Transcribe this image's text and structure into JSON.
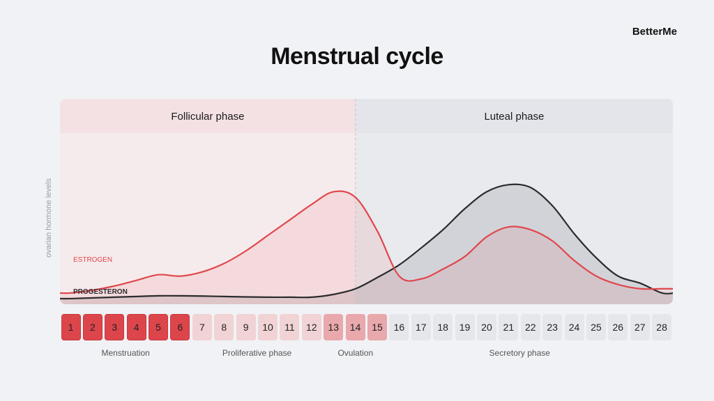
{
  "brand": "BetterMe",
  "title": "Menstrual cycle",
  "colors": {
    "estrogen": "#e0474c",
    "progesterone": "#2b2b2e",
    "follicular_bg": "#f3e1e3",
    "luteal_bg": "#e3e5ea",
    "menstruation_day": "#e0474c",
    "ovulation_day": "#e8a8ac",
    "proliferative_day": "#f1d3d5",
    "secretory_day": "#e6e7eb"
  },
  "chart_data": {
    "type": "line",
    "ylabel": "ovarian hormone levels",
    "phases": [
      {
        "label": "Follicular phase",
        "start_day": 1,
        "end_day": 14
      },
      {
        "label": "Luteal phase",
        "start_day": 14,
        "end_day": 28
      }
    ],
    "x": [
      1,
      2,
      3,
      4,
      5,
      6,
      7,
      8,
      9,
      10,
      11,
      12,
      13,
      14,
      15,
      16,
      17,
      18,
      19,
      20,
      21,
      22,
      23,
      24,
      25,
      26,
      27,
      28
    ],
    "series": [
      {
        "name": "ESTROGEN",
        "values": [
          8,
          10,
          13,
          17,
          21,
          20,
          23,
          29,
          38,
          49,
          60,
          71,
          80,
          76,
          52,
          20,
          18,
          25,
          34,
          48,
          55,
          53,
          45,
          31,
          20,
          14,
          11,
          11
        ]
      },
      {
        "name": "PROGESTERON",
        "values": [
          4,
          4.5,
          5,
          5.5,
          6,
          6,
          5.8,
          5.5,
          5.2,
          5,
          5,
          5,
          7,
          11,
          19,
          28,
          40,
          53,
          68,
          80,
          85,
          83,
          70,
          50,
          33,
          20,
          15,
          8
        ]
      }
    ],
    "ylim": [
      0,
      100
    ]
  },
  "days": [
    {
      "label": "1",
      "type": "menstruation"
    },
    {
      "label": "2",
      "type": "menstruation"
    },
    {
      "label": "3",
      "type": "menstruation"
    },
    {
      "label": "4",
      "type": "menstruation"
    },
    {
      "label": "5",
      "type": "menstruation"
    },
    {
      "label": "6",
      "type": "menstruation"
    },
    {
      "label": "7",
      "type": "proliferative"
    },
    {
      "label": "8",
      "type": "proliferative"
    },
    {
      "label": "9",
      "type": "proliferative"
    },
    {
      "label": "10",
      "type": "proliferative"
    },
    {
      "label": "11",
      "type": "proliferative"
    },
    {
      "label": "12",
      "type": "proliferative"
    },
    {
      "label": "13",
      "type": "ovulation"
    },
    {
      "label": "14",
      "type": "ovulation"
    },
    {
      "label": "15",
      "type": "ovulation"
    },
    {
      "label": "16",
      "type": "secretory"
    },
    {
      "label": "17",
      "type": "secretory"
    },
    {
      "label": "18",
      "type": "secretory"
    },
    {
      "label": "19",
      "type": "secretory"
    },
    {
      "label": "20",
      "type": "secretory"
    },
    {
      "label": "21",
      "type": "secretory"
    },
    {
      "label": "22",
      "type": "secretory"
    },
    {
      "label": "23",
      "type": "secretory"
    },
    {
      "label": "24",
      "type": "secretory"
    },
    {
      "label": "25",
      "type": "secretory"
    },
    {
      "label": "26",
      "type": "secretory"
    },
    {
      "label": "27",
      "type": "secretory"
    },
    {
      "label": "28",
      "type": "secretory"
    }
  ],
  "phase_labels": [
    {
      "label": "Menstruation",
      "center_day": 3.5
    },
    {
      "label": "Proliferative phase",
      "center_day": 9.5
    },
    {
      "label": "Ovulation",
      "center_day": 14
    },
    {
      "label": "Secretory phase",
      "center_day": 21.5
    }
  ]
}
